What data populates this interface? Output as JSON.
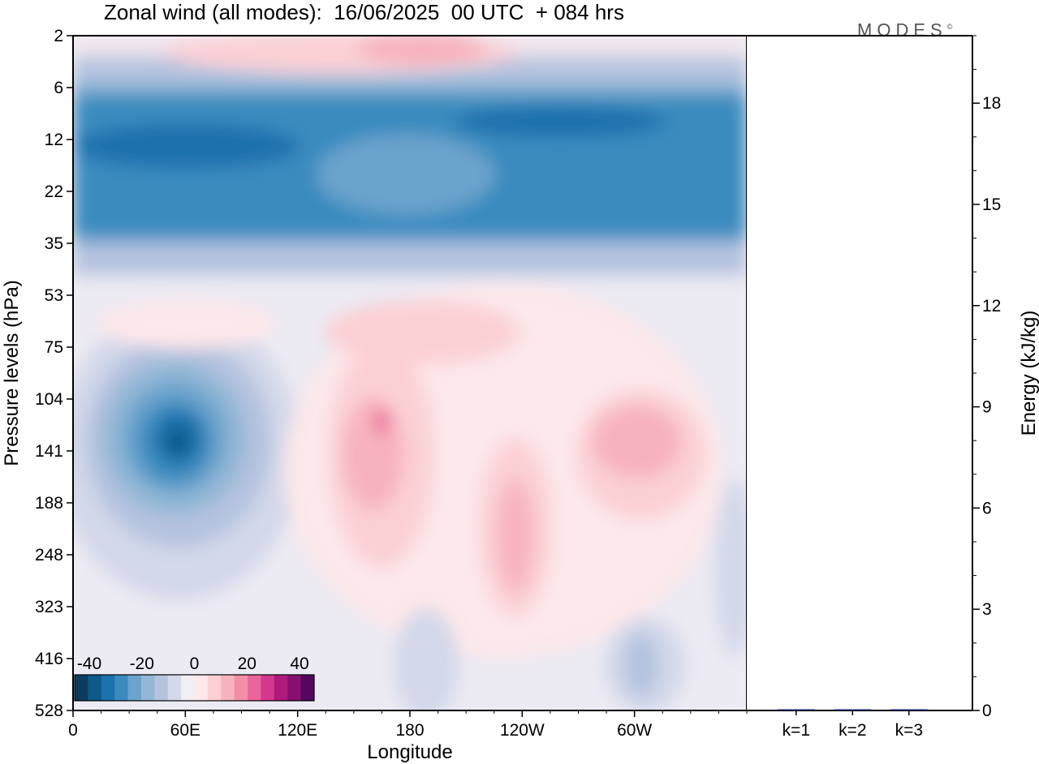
{
  "title": "Zonal wind (all modes):  16/06/2025  00 UTC  + 084 hrs",
  "brand": {
    "text": "MODES",
    "mark": "©"
  },
  "chart_data": [
    {
      "type": "heatmap",
      "variable": "Zonal wind",
      "xlabel": "Longitude",
      "ylabel": "Pressure levels (hPa)",
      "x_ticks": [
        "0",
        "60E",
        "120E",
        "180",
        "120W",
        "60W"
      ],
      "x_tick_degrees": [
        0,
        60,
        120,
        180,
        240,
        300
      ],
      "xlim": [
        0,
        360
      ],
      "y_ticks": [
        "2",
        "6",
        "12",
        "22",
        "35",
        "53",
        "75",
        "104",
        "141",
        "188",
        "248",
        "323",
        "416",
        "528"
      ],
      "colorbar": {
        "tick_labels": [
          "-40",
          "-20",
          "0",
          "20",
          "40"
        ],
        "colors": [
          "#0b3d5e",
          "#0d5a8a",
          "#1b72ad",
          "#3b8bbf",
          "#6aa3cc",
          "#93b7d6",
          "#b5c3df",
          "#d3d8ea",
          "#f1eef4",
          "#fde8ea",
          "#fbd0d5",
          "#f7b3bd",
          "#f28ea5",
          "#e9659a",
          "#d4388c",
          "#b01a7c",
          "#861070",
          "#55075e"
        ]
      },
      "regions": [
        {
          "name": "upper easterly band",
          "lon": [
            0,
            360
          ],
          "level": [
            9,
            40
          ],
          "u": -24
        },
        {
          "name": "upper core west",
          "lon": [
            5,
            130
          ],
          "level": [
            10,
            16
          ],
          "u": -30
        },
        {
          "name": "upper core east",
          "lon": [
            200,
            330
          ],
          "level": [
            9,
            13
          ],
          "u": -30
        },
        {
          "name": "stratospheric westerlies",
          "lon": [
            80,
            230
          ],
          "level": [
            2,
            5
          ],
          "u": 12
        },
        {
          "name": "upper tropospheric easterly core",
          "lon": [
            55,
            70
          ],
          "level": [
            125,
            150
          ],
          "u": -38
        },
        {
          "name": "westerlies near dateline",
          "lon": [
            140,
            175
          ],
          "level": [
            90,
            220
          ],
          "u": 12
        },
        {
          "name": "westerlies near 120W",
          "lon": [
            225,
            245
          ],
          "level": [
            150,
            290
          ],
          "u": 10
        },
        {
          "name": "westerlies near 60W",
          "lon": [
            280,
            320
          ],
          "level": [
            100,
            170
          ],
          "u": 12
        }
      ]
    },
    {
      "type": "bar",
      "categories": [
        "k=1",
        "k=2",
        "k=3"
      ],
      "values": [
        0.02,
        0.01,
        0.005
      ],
      "ylabel": "Energy (kJ/kg)",
      "ylim": [
        0,
        20
      ],
      "y_ticks": [
        "0",
        "3",
        "6",
        "9",
        "12",
        "15",
        "18"
      ],
      "colors": [
        "#1a237e",
        "#1a237e",
        "#1a237e"
      ]
    }
  ]
}
